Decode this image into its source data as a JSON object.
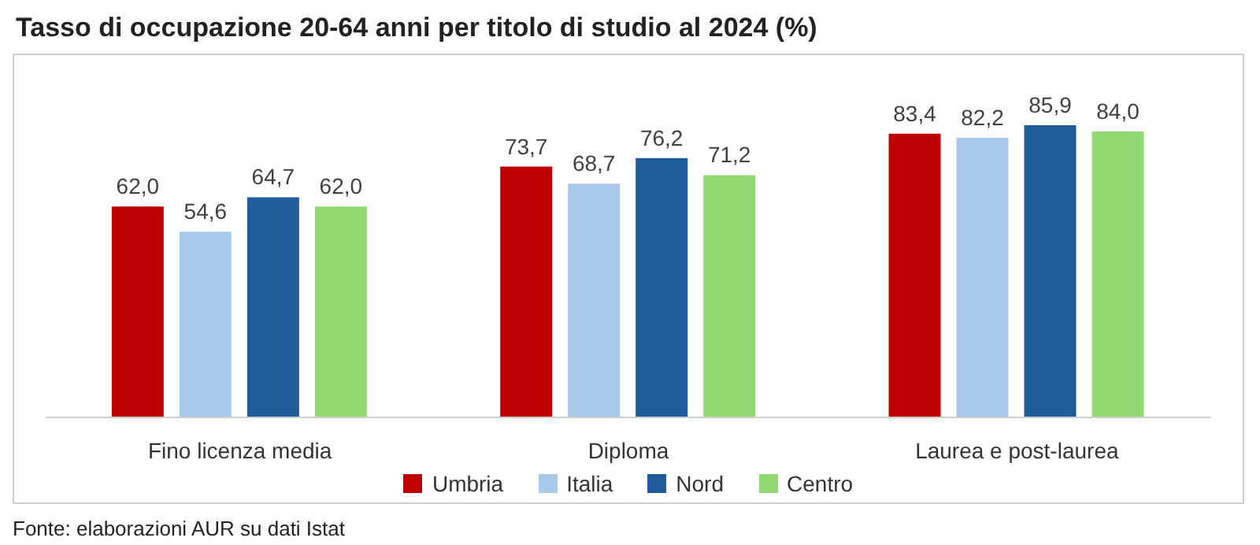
{
  "chart_data": {
    "type": "bar",
    "title": "Tasso di occupazione 20-64 anni per titolo di studio al 2024 (%)",
    "categories": [
      "Fino licenza media",
      "Diploma",
      "Laurea e post-laurea"
    ],
    "series": [
      {
        "name": "Umbria",
        "color": "#c00000",
        "values": [
          62.0,
          73.7,
          83.4
        ],
        "value_labels": [
          "62,0",
          "73,7",
          "83,4"
        ]
      },
      {
        "name": "Italia",
        "color": "#a9c9eb",
        "values": [
          54.6,
          68.7,
          82.2
        ],
        "value_labels": [
          "54,6",
          "68,7",
          "82,2"
        ]
      },
      {
        "name": "Nord",
        "color": "#1f5c99",
        "values": [
          64.7,
          76.2,
          85.9
        ],
        "value_labels": [
          "64,7",
          "76,2",
          "85,9"
        ]
      },
      {
        "name": "Centro",
        "color": "#92d872",
        "values": [
          62.0,
          71.2,
          84.0
        ],
        "value_labels": [
          "62,0",
          "71,2",
          "84,0"
        ]
      }
    ],
    "legend": "bottom",
    "grid": false,
    "annotations": [
      "Fonte: elaborazioni AUR su dati Istat"
    ]
  }
}
